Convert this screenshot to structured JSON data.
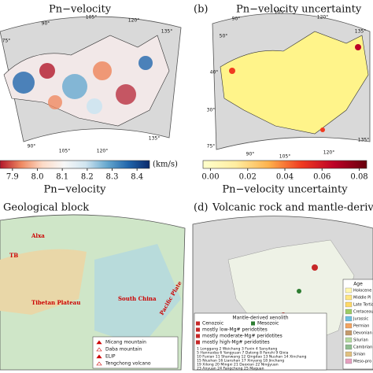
{
  "panels": [
    {
      "title": "Pn−velocity",
      "degree_labels": [
        "75°",
        "90°",
        "105°",
        "120°",
        "135°",
        "90°",
        "105°",
        "120°",
        "135°"
      ],
      "colorbar": {
        "range": [
          7.85,
          8.45
        ],
        "colors": [
          "#b2182b",
          "#ef8a62",
          "#fddbc7",
          "#f7f7f7",
          "#d1e5f0",
          "#67a9cf",
          "#2166ac",
          "#0b2a6b"
        ],
        "ticks": [
          7.9,
          {
            "value": 8,
            "label": "8.0"
          },
          8.1,
          8.2,
          8.3,
          8.4
        ],
        "unit": "(km/s)",
        "label": "Pn−velocity"
      }
    },
    {
      "letter": "(b)",
      "title": "Pn−velocity uncertainty",
      "degree_labels": [
        "90°",
        "105°",
        "120°",
        "135°",
        "50°",
        "40°",
        "30°",
        "75°",
        "90°",
        "105°",
        "120°",
        "135°"
      ],
      "colorbar": {
        "range": [
          -0.004,
          0.084
        ],
        "colors": [
          "#ffffcc",
          "#ffeda0",
          "#feb24c",
          "#f03b20",
          "#bd0026",
          "#67000d"
        ],
        "ticks": [
          {
            "value": 0,
            "label": "0.00"
          },
          0.02,
          0.04,
          0.06,
          0.08
        ],
        "label": "Pn−velocity uncertainty"
      }
    },
    {
      "title": "Geological block",
      "map_labels": [
        "Alxa",
        "TB",
        "Tibetan Plateau",
        "South China",
        "Pacific Plate"
      ],
      "legend": [
        "Micang mountain",
        "Daba mountain",
        "ELIP",
        "Tengchong volcano"
      ]
    },
    {
      "letter": "(d)",
      "title": "Volcanic rock and mantle-derived xe",
      "legend_title": "Mantle-derived xenolith",
      "legend": [
        "Cenozoic",
        "Mesozoic",
        "mostly low-Mg# peridotites",
        "mostly moderate-Mg# peridotites",
        "mostly high-Mg# peridotites"
      ],
      "localities": [
        "1 Longgang  2 Weichang  3 Fuxin  4 Sanyitang",
        "5 Hannuoba  6 Yangyuan  7 Datong  8 Fanshi  9 Qixia",
        "10 Fuxian  11 Shanwang  12 Qingdao  13 Nushan  14 Xinchang",
        "15 Niushan  16 Lianshan  17 Xinyang  18 Jinchang",
        "19 Xilong  20 Mingxi  21 Daoxian  22 Ningyuan",
        "23 Anyuan  24 Fangcheng  25 Maguan"
      ],
      "age_title": "Age",
      "ages": [
        "Holocene",
        "Middle Pl",
        "Late Tertiary",
        "Cretaceous",
        "Jurassic",
        "Permian",
        "Devonian",
        "Silurian",
        "Cambrian",
        "Sinian",
        "Meso-pro"
      ],
      "age_colors": [
        "#fff7b0",
        "#ffe680",
        "#ffd966",
        "#9ccc65",
        "#6bc0e0",
        "#f4a460",
        "#c49a6c",
        "#b3d9a0",
        "#8fbc8f",
        "#e0c080",
        "#e6a0c0"
      ]
    }
  ]
}
